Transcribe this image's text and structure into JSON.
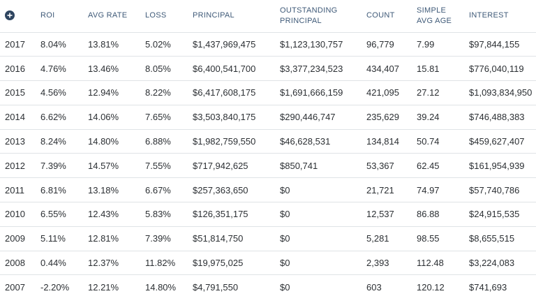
{
  "header": {
    "expand_icon": "plus-circle-icon",
    "columns": {
      "roi": "ROI",
      "avg_rate": "AVG RATE",
      "loss": "LOSS",
      "principal": "PRINCIPAL",
      "outstanding_line1": "OUTSTANDING",
      "outstanding_line2": "PRINCIPAL",
      "count": "COUNT",
      "age_line1": "SIMPLE",
      "age_line2": "AVG AGE",
      "interest": "INTEREST"
    }
  },
  "rows": [
    {
      "year": "2017",
      "roi": "8.04%",
      "avg_rate": "13.81%",
      "loss": "5.02%",
      "principal": "$1,437,969,475",
      "outstanding": "$1,123,130,757",
      "count": "96,779",
      "age": "7.99",
      "interest": "$97,844,155"
    },
    {
      "year": "2016",
      "roi": "4.76%",
      "avg_rate": "13.46%",
      "loss": "8.05%",
      "principal": "$6,400,541,700",
      "outstanding": "$3,377,234,523",
      "count": "434,407",
      "age": "15.81",
      "interest": "$776,040,119"
    },
    {
      "year": "2015",
      "roi": "4.56%",
      "avg_rate": "12.94%",
      "loss": "8.22%",
      "principal": "$6,417,608,175",
      "outstanding": "$1,691,666,159",
      "count": "421,095",
      "age": "27.12",
      "interest": "$1,093,834,950"
    },
    {
      "year": "2014",
      "roi": "6.62%",
      "avg_rate": "14.06%",
      "loss": "7.65%",
      "principal": "$3,503,840,175",
      "outstanding": "$290,446,747",
      "count": "235,629",
      "age": "39.24",
      "interest": "$746,488,383"
    },
    {
      "year": "2013",
      "roi": "8.24%",
      "avg_rate": "14.80%",
      "loss": "6.88%",
      "principal": "$1,982,759,550",
      "outstanding": "$46,628,531",
      "count": "134,814",
      "age": "50.74",
      "interest": "$459,627,407"
    },
    {
      "year": "2012",
      "roi": "7.39%",
      "avg_rate": "14.57%",
      "loss": "7.55%",
      "principal": "$717,942,625",
      "outstanding": "$850,741",
      "count": "53,367",
      "age": "62.45",
      "interest": "$161,954,939"
    },
    {
      "year": "2011",
      "roi": "6.81%",
      "avg_rate": "13.18%",
      "loss": "6.67%",
      "principal": "$257,363,650",
      "outstanding": "$0",
      "count": "21,721",
      "age": "74.97",
      "interest": "$57,740,786"
    },
    {
      "year": "2010",
      "roi": "6.55%",
      "avg_rate": "12.43%",
      "loss": "5.83%",
      "principal": "$126,351,175",
      "outstanding": "$0",
      "count": "12,537",
      "age": "86.88",
      "interest": "$24,915,535"
    },
    {
      "year": "2009",
      "roi": "5.11%",
      "avg_rate": "12.81%",
      "loss": "7.39%",
      "principal": "$51,814,750",
      "outstanding": "$0",
      "count": "5,281",
      "age": "98.55",
      "interest": "$8,655,515"
    },
    {
      "year": "2008",
      "roi": "0.44%",
      "avg_rate": "12.37%",
      "loss": "11.82%",
      "principal": "$19,975,025",
      "outstanding": "$0",
      "count": "2,393",
      "age": "112.48",
      "interest": "$3,224,083"
    },
    {
      "year": "2007",
      "roi": "-2.20%",
      "avg_rate": "12.21%",
      "loss": "14.80%",
      "principal": "$4,791,550",
      "outstanding": "$0",
      "count": "603",
      "age": "120.12",
      "interest": "$741,693"
    }
  ]
}
